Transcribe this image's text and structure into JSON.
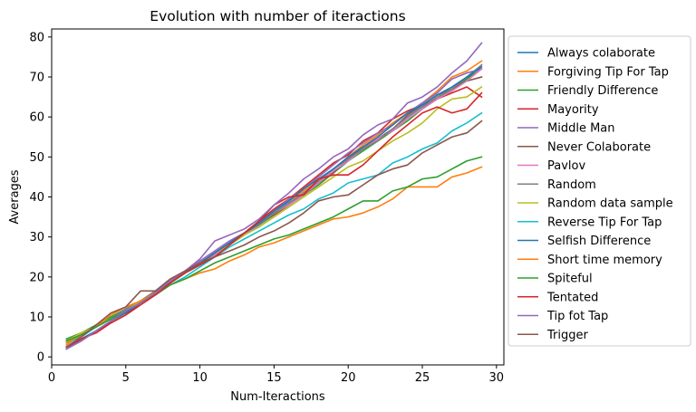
{
  "chart_data": {
    "type": "line",
    "title": "Evolution with number of iteractions",
    "xlabel": "Num-Iteractions",
    "ylabel": "Averages",
    "xlim": [
      0,
      30.5
    ],
    "ylim": [
      -2,
      82
    ],
    "xticks": [
      0,
      5,
      10,
      15,
      20,
      25,
      30
    ],
    "yticks": [
      0,
      10,
      20,
      30,
      40,
      50,
      60,
      70,
      80
    ],
    "grid": false,
    "legend_position": "outside-right",
    "x": [
      1,
      2,
      3,
      4,
      5,
      6,
      7,
      8,
      9,
      10,
      11,
      12,
      13,
      14,
      15,
      16,
      17,
      18,
      19,
      20,
      21,
      22,
      23,
      24,
      25,
      26,
      27,
      28,
      29
    ],
    "series": [
      {
        "name": "Always colaborate",
        "color": "#1f77b4",
        "values": [
          4,
          5.5,
          7.5,
          9.5,
          11.5,
          13.5,
          16,
          19,
          21.5,
          23.5,
          26,
          28.5,
          31,
          33.5,
          36,
          38.5,
          41,
          43.5,
          46,
          49,
          52,
          54.5,
          57,
          60,
          62.5,
          64.5,
          66.5,
          69.5,
          73
        ]
      },
      {
        "name": "Forgiving Tip For Tap",
        "color": "#ff7f0e",
        "values": [
          3,
          5.5,
          7.5,
          9.5,
          11.5,
          13.5,
          16,
          18.5,
          21,
          23,
          25.5,
          28,
          31,
          34,
          36.5,
          39,
          41.5,
          44,
          47,
          50,
          53,
          55.5,
          58.5,
          61,
          63.5,
          66.5,
          70,
          71.5,
          74
        ]
      },
      {
        "name": "Friendly Difference",
        "color": "#2ca02c",
        "values": [
          4.5,
          6,
          8,
          10,
          12,
          14,
          16.5,
          18.5,
          21,
          23,
          25.5,
          28,
          30.5,
          33,
          35.5,
          38,
          40.5,
          43,
          46,
          49,
          51.5,
          54,
          56.5,
          59,
          62,
          64.5,
          67,
          69.5,
          72
        ]
      },
      {
        "name": "Mayority",
        "color": "#d62728",
        "values": [
          2,
          4,
          6.5,
          8.5,
          10.5,
          13.5,
          16,
          18.5,
          21,
          23.5,
          26,
          28.5,
          31,
          34,
          37,
          39.5,
          42.5,
          45.5,
          48.5,
          50.5,
          54,
          56,
          59.5,
          61.5,
          63,
          64.5,
          66,
          67.5,
          65
        ]
      },
      {
        "name": "Middle Man",
        "color": "#9467bd",
        "values": [
          4,
          5.5,
          7.5,
          9.5,
          12,
          14,
          16.5,
          19,
          21.5,
          24,
          26.5,
          29,
          31,
          33.5,
          36.5,
          39.5,
          42,
          45,
          48,
          51,
          53.5,
          56,
          58,
          61,
          63.5,
          66,
          69.5,
          71,
          72
        ]
      },
      {
        "name": "Never Colaborate",
        "color": "#8c564b",
        "values": [
          2.5,
          4.5,
          6.5,
          9,
          11,
          13.5,
          16,
          18.5,
          21,
          23,
          26,
          28.5,
          31,
          33.5,
          35.5,
          38,
          41,
          43.5,
          46,
          49.5,
          52.5,
          54.5,
          57,
          60.5,
          63,
          65.5,
          67,
          69,
          70
        ]
      },
      {
        "name": "Pavlov",
        "color": "#e377c2",
        "values": [
          4,
          6,
          7.5,
          9.5,
          11.5,
          14,
          16,
          18.5,
          21,
          23,
          25.5,
          28,
          30.5,
          33,
          36,
          38,
          40.5,
          43.5,
          46.5,
          49,
          52,
          54.5,
          56.5,
          59.5,
          62,
          64.5,
          66.5,
          69,
          72
        ]
      },
      {
        "name": "Random",
        "color": "#7f7f7f",
        "values": [
          4,
          5.5,
          7.5,
          9.5,
          12,
          14,
          16.5,
          19,
          21,
          23.5,
          26,
          28.5,
          31,
          33,
          36,
          38.5,
          41,
          44,
          47,
          49.5,
          52,
          54,
          57,
          60,
          62.5,
          65,
          67,
          70,
          73
        ]
      },
      {
        "name": "Random data sample",
        "color": "#bcbd22",
        "values": [
          4,
          6,
          7.5,
          9.5,
          11.5,
          14,
          16,
          18.5,
          21,
          23.5,
          26,
          28,
          30.5,
          32.5,
          35,
          37.5,
          40,
          42.5,
          45,
          47.5,
          49,
          51.5,
          54,
          56,
          58.5,
          62,
          64.5,
          65,
          67.5
        ]
      },
      {
        "name": "Reverse Tip For Tap",
        "color": "#17becf",
        "values": [
          3.5,
          5,
          7.5,
          9.5,
          11.5,
          13.5,
          16,
          18,
          20,
          22.5,
          25,
          27.5,
          29.5,
          31.5,
          33.5,
          35.5,
          37,
          39.5,
          41,
          43.5,
          44.5,
          45.5,
          48.5,
          50,
          52,
          53.5,
          56.5,
          58.5,
          61
        ]
      },
      {
        "name": "Selfish Difference",
        "color": "#1f77b4",
        "values": [
          2,
          4.5,
          6.5,
          9,
          11,
          13.5,
          16,
          18.5,
          21,
          23.5,
          26,
          28.5,
          31,
          33.5,
          36.5,
          39,
          42,
          44.5,
          47,
          50,
          52.5,
          55,
          58,
          61,
          63,
          65.5,
          67.5,
          70,
          72.5
        ]
      },
      {
        "name": "Short time memory",
        "color": "#ff7f0e",
        "values": [
          3.5,
          5.5,
          7.5,
          10.5,
          12.5,
          14,
          16,
          18,
          19.5,
          21,
          22,
          24,
          25.5,
          27.5,
          28.5,
          30,
          31.5,
          33,
          34.5,
          35,
          36,
          37.5,
          39.5,
          42.5,
          42.5,
          42.5,
          45,
          46,
          47.5
        ]
      },
      {
        "name": "Spiteful",
        "color": "#2ca02c",
        "values": [
          4,
          5.5,
          7.5,
          9.5,
          11.5,
          13.5,
          15.5,
          18,
          19.5,
          21.5,
          23.5,
          25,
          26.5,
          28,
          29.5,
          30.5,
          32,
          33.5,
          35,
          37,
          39,
          39,
          41.5,
          42.5,
          44.5,
          45,
          47,
          49,
          50
        ]
      },
      {
        "name": "Tentated",
        "color": "#d62728",
        "values": [
          2.5,
          4.5,
          6,
          8.5,
          10.5,
          13,
          15.5,
          18.5,
          21,
          23,
          25,
          28,
          31,
          34,
          38,
          40,
          40.5,
          44.5,
          45.5,
          45.5,
          48,
          51.5,
          55,
          58,
          61,
          62.5,
          61,
          62,
          66
        ]
      },
      {
        "name": "Tip fot Tap",
        "color": "#9467bd",
        "values": [
          2,
          4,
          6.5,
          9,
          11.5,
          13.5,
          16,
          19,
          21.5,
          24.5,
          29,
          30.5,
          32,
          34.5,
          38,
          41,
          44.5,
          47,
          50,
          52,
          55.5,
          58,
          59.5,
          63.5,
          65,
          67.5,
          71,
          74,
          78.5
        ]
      },
      {
        "name": "Trigger",
        "color": "#8c564b",
        "values": [
          2.5,
          5,
          8,
          11,
          12.5,
          16.5,
          16.5,
          19.5,
          21.5,
          23.5,
          25,
          26.5,
          28,
          30,
          31.5,
          33.5,
          36,
          39,
          40,
          40.5,
          43,
          45.5,
          47,
          48,
          51,
          53,
          55,
          56,
          59
        ]
      }
    ]
  }
}
